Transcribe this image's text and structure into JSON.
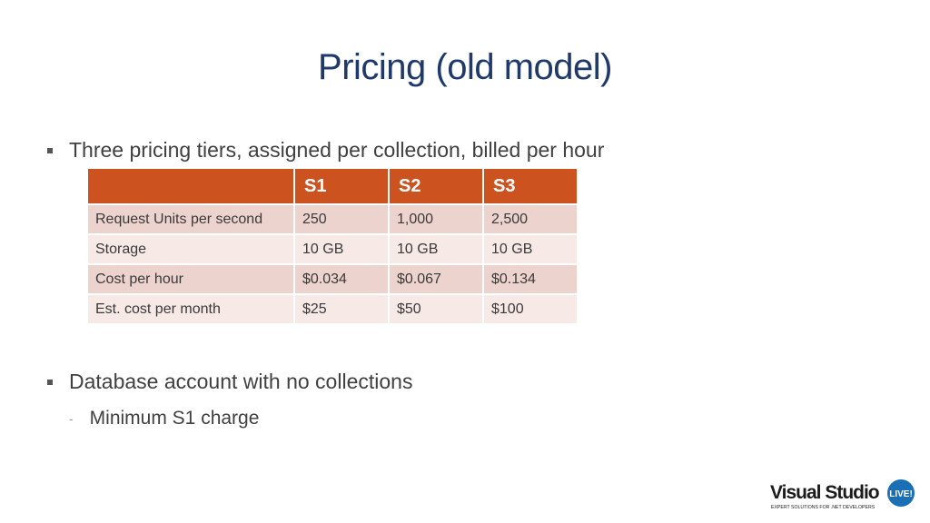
{
  "slide": {
    "title": "Pricing (old model)",
    "bullets": [
      "Three pricing tiers, assigned per collection, billed per hour",
      "Database account with no collections"
    ],
    "sub_bullet": "Minimum S1 charge"
  },
  "table": {
    "headers": [
      "",
      "S1",
      "S2",
      "S3"
    ],
    "rows": [
      [
        "Request Units per second",
        "250",
        "1,000",
        "2,500"
      ],
      [
        "Storage",
        "10 GB",
        "10 GB",
        "10 GB"
      ],
      [
        "Cost per hour",
        "$0.034",
        "$0.067",
        "$0.134"
      ],
      [
        "Est. cost per month",
        "$25",
        "$50",
        "$100"
      ]
    ]
  },
  "logo": {
    "name": "Visual Studio",
    "badge": "LIVE!",
    "tagline": "EXPERT SOLUTIONS FOR .NET DEVELOPERS",
    "colors": {
      "text": "#1b1b1b",
      "badge": "#1a6fb5"
    }
  }
}
